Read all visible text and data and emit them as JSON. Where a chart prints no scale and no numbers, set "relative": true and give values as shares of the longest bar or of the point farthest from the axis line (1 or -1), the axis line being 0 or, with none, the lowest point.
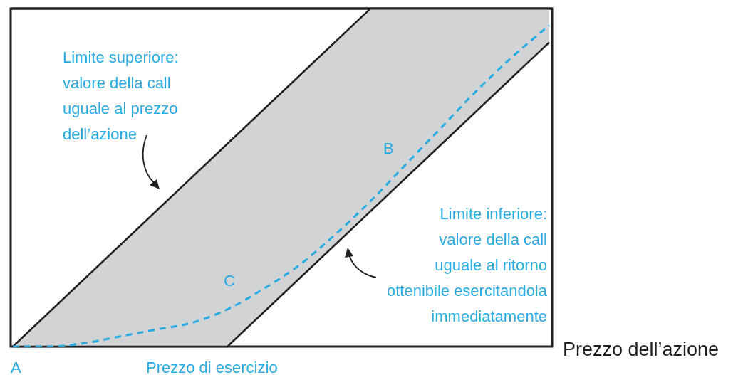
{
  "chart_data": {
    "type": "line",
    "relative": true,
    "xlabel": "Prezzo dell’azione",
    "categories": [
      null,
      null,
      null,
      null,
      null,
      null,
      null,
      null,
      null,
      null,
      null,
      null,
      null,
      null,
      null,
      null
    ],
    "series": [
      {
        "color": "#231f20",
        "line_style": "solid",
        "values": [
          0,
          0.1,
          0.2,
          0.3,
          0.4,
          0.5,
          0.6,
          0.7,
          0.8,
          0.9,
          1,
          null,
          null,
          null,
          null,
          null
        ]
      },
      {
        "color": "#231f20",
        "line_style": "solid",
        "values": [
          0,
          0,
          0,
          0,
          0,
          0,
          0,
          0.1,
          0.2,
          0.3,
          0.4,
          0.5,
          0.6,
          0.7,
          0.8,
          0.9
        ]
      },
      {
        "color": "#29abe2",
        "line_style": "dashed",
        "values": [
          0,
          0,
          0.01,
          0.03,
          0.05,
          0.07,
          0.11,
          0.17,
          0.24,
          0.33,
          0.43,
          0.54,
          0.65,
          0.76,
          0.86,
          0.95
        ],
        "lower": [
          0,
          0,
          0,
          0,
          0,
          0,
          0,
          0.1,
          0.2,
          0.3,
          0.4,
          0.5,
          0.6,
          0.7,
          0.8,
          0.9
        ],
        "upper": [
          0,
          0.1,
          0.2,
          0.3,
          0.4,
          0.5,
          0.6,
          0.7,
          0.8,
          0.9,
          1,
          1,
          1,
          1,
          1,
          1
        ]
      }
    ],
    "annotations": [
      "Limite superiore:\nvalore della call\nuguale al prezzo\ndell’azione",
      "Limite inferiore:\nvalore della call\nuguale al ritorno\nottenibile esercitandola\nimmediatamente",
      "A",
      "B",
      "C",
      "Prezzo di esercizio"
    ],
    "marker": "none"
  }
}
